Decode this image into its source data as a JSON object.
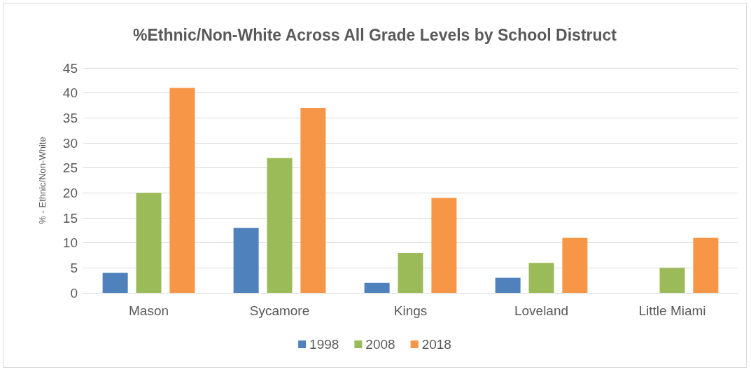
{
  "chart_data": {
    "type": "bar",
    "title": "%Ethnic/Non-White Across All Grade Levels by School Distruct",
    "ylabel": "% - Ethnic/Non-White",
    "categories": [
      "Mason",
      "Sycamore",
      "Kings",
      "Loveland",
      "Little Miami"
    ],
    "series": [
      {
        "name": "1998",
        "color": "#4f81bd",
        "values": [
          4,
          13,
          2,
          3,
          null
        ]
      },
      {
        "name": "2008",
        "color": "#9bbb59",
        "values": [
          20,
          27,
          8,
          6,
          5
        ]
      },
      {
        "name": "2018",
        "color": "#f79646",
        "values": [
          41,
          37,
          19,
          11,
          11
        ]
      }
    ],
    "ylim": [
      0,
      45
    ],
    "yticks": [
      0,
      5,
      10,
      15,
      20,
      25,
      30,
      35,
      40,
      45
    ],
    "grid": "y",
    "legend": "bottom"
  }
}
